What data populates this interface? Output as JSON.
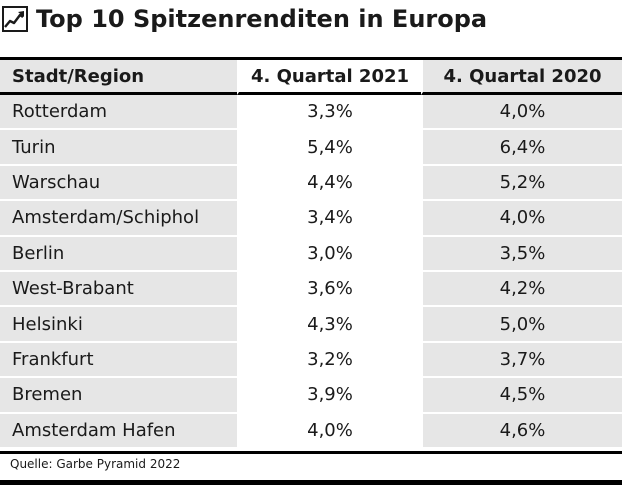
{
  "title": "Top 10 Spitzenrenditen in Europa",
  "chart_data": {
    "type": "table",
    "title": "Top 10 Spitzenrenditen in Europa",
    "columns": [
      "Stadt/Region",
      "4. Quartal 2021",
      "4. Quartal 2020"
    ],
    "rows": [
      [
        "Rotterdam",
        "3,3%",
        "4,0%"
      ],
      [
        "Turin",
        "5,4%",
        "6,4%"
      ],
      [
        "Warschau",
        "4,4%",
        "5,2%"
      ],
      [
        "Amsterdam/Schiphol",
        "3,4%",
        "4,0%"
      ],
      [
        "Berlin",
        "3,0%",
        "3,5%"
      ],
      [
        "West-Brabant",
        "3,6%",
        "4,2%"
      ],
      [
        "Helsinki",
        "4,3%",
        "5,0%"
      ],
      [
        "Frankfurt",
        "3,2%",
        "3,7%"
      ],
      [
        "Bremen",
        "3,9%",
        "4,5%"
      ],
      [
        "Amsterdam Hafen",
        "4,0%",
        "4,6%"
      ]
    ]
  },
  "source": "Quelle: Garbe Pyramid 2022",
  "icon": "trend-chart-icon",
  "colors": {
    "shade": "#e6e6e6",
    "rule": "#000000"
  }
}
